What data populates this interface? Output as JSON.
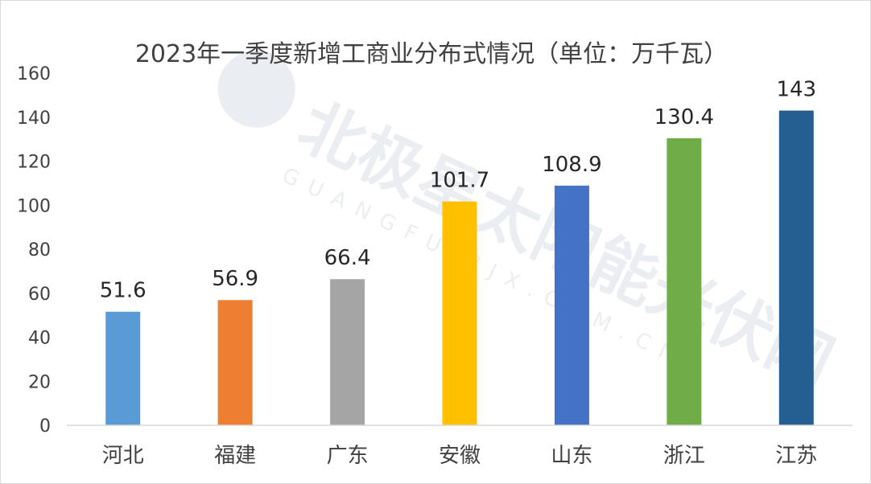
{
  "chart_data": {
    "type": "bar",
    "title": "2023年一季度新增工商业分布式情况（单位：万千瓦）",
    "categories": [
      "河北",
      "福建",
      "广东",
      "安徽",
      "山东",
      "浙江",
      "江苏"
    ],
    "values": [
      51.6,
      56.9,
      66.4,
      101.7,
      108.9,
      130.4,
      143
    ],
    "data_labels": [
      "51.6",
      "56.9",
      "66.4",
      "101.7",
      "108.9",
      "130.4",
      "143"
    ],
    "colors": [
      "#5B9BD5",
      "#ED7D31",
      "#A5A5A5",
      "#FFC000",
      "#4472C4",
      "#70AD47",
      "#255E91"
    ],
    "yticks": [
      "0",
      "20",
      "40",
      "60",
      "80",
      "100",
      "120",
      "140",
      "160"
    ],
    "ylim": [
      0,
      160
    ],
    "grid": false,
    "legend": "none"
  },
  "watermark": {
    "text": "北极星太阳能光伏网",
    "subtext": "GUANGFU.BJX.COM.CN"
  }
}
